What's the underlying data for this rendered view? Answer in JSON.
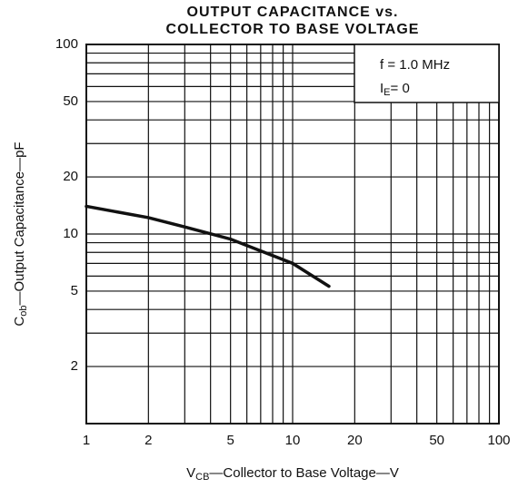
{
  "chart_data": {
    "type": "line",
    "title": [
      "OUTPUT CAPACITANCE vs.",
      "COLLECTOR TO BASE VOLTAGE"
    ],
    "xlabel": {
      "symbol": "V",
      "subscript": "CB",
      "text": "—Collector to Base Voltage—V"
    },
    "ylabel": {
      "symbol": "C",
      "subscript": "ob",
      "text": "—Output Capacitance—pF"
    },
    "annotations": [
      {
        "text": "f = 1.0 MHz"
      },
      {
        "symbol": "I",
        "subscript": "E",
        "text": "= 0"
      }
    ],
    "xscale": "log",
    "yscale": "log",
    "xlim": [
      1,
      100
    ],
    "ylim": [
      1,
      100
    ],
    "xticks": [
      1,
      2,
      5,
      10,
      20,
      50,
      100
    ],
    "yticks": [
      2,
      5,
      10,
      20,
      50,
      100
    ],
    "xgrid": [
      1,
      2,
      3,
      4,
      5,
      6,
      7,
      8,
      9,
      10,
      20,
      30,
      40,
      50,
      60,
      70,
      80,
      90,
      100
    ],
    "ygrid": [
      1,
      2,
      3,
      4,
      5,
      6,
      7,
      8,
      9,
      10,
      20,
      30,
      40,
      50,
      60,
      70,
      80,
      90,
      100
    ],
    "series": [
      {
        "color": "#111111",
        "x": [
          1,
          2,
          3,
          5,
          10,
          15
        ],
        "values": [
          14,
          12.2,
          10.9,
          9.4,
          7.0,
          5.3
        ]
      }
    ]
  }
}
